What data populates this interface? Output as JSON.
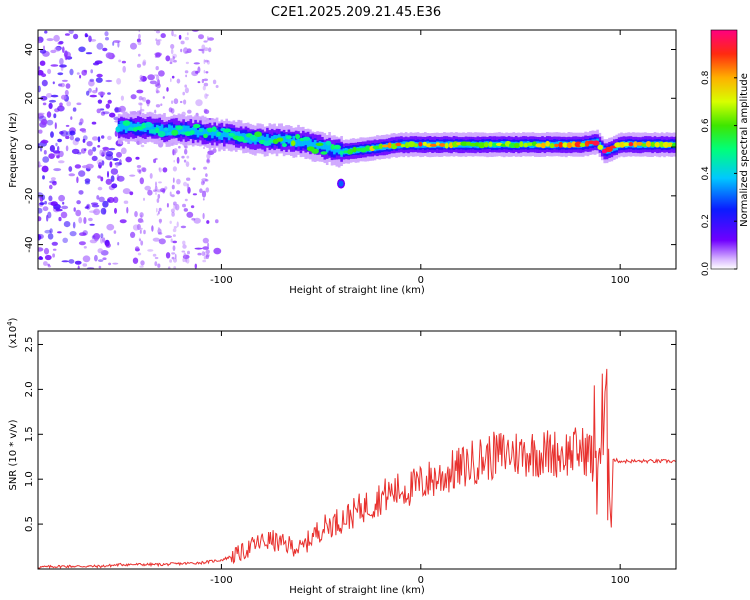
{
  "title": "C2E1.2025.209.21.45.E36",
  "chart_data": [
    {
      "type": "heatmap",
      "xlabel": "Height of straight line (km)",
      "ylabel": "Frequency (Hz)",
      "xlim": [
        -192,
        128
      ],
      "ylim": [
        -50,
        48
      ],
      "xticks": [
        -100,
        0,
        100
      ],
      "yticks": [
        -40,
        -20,
        0,
        20,
        40
      ],
      "colorbar": {
        "label": "Normalized spectral amplitude",
        "range": [
          0,
          1
        ],
        "ticks": [
          0.0,
          0.2,
          0.4,
          0.6,
          0.8
        ]
      },
      "ridge_frequency": [
        [
          -152,
          8
        ],
        [
          -140,
          8
        ],
        [
          -130,
          7
        ],
        [
          -120,
          7
        ],
        [
          -110,
          6
        ],
        [
          -100,
          5
        ],
        [
          -90,
          4
        ],
        [
          -80,
          3
        ],
        [
          -70,
          3
        ],
        [
          -60,
          2
        ],
        [
          -50,
          0
        ],
        [
          -40,
          -2
        ],
        [
          -30,
          -1
        ],
        [
          -20,
          0
        ],
        [
          -10,
          1
        ],
        [
          0,
          1
        ],
        [
          20,
          1
        ],
        [
          40,
          1
        ],
        [
          60,
          1
        ],
        [
          80,
          1
        ],
        [
          88,
          2
        ],
        [
          92,
          -2
        ],
        [
          100,
          1
        ],
        [
          128,
          1
        ]
      ],
      "ridge_peak_amplitude": [
        [
          -152,
          0.45
        ],
        [
          -120,
          0.5
        ],
        [
          -100,
          0.5
        ],
        [
          -80,
          0.55
        ],
        [
          -60,
          0.6
        ],
        [
          -40,
          0.55
        ],
        [
          -20,
          0.75
        ],
        [
          0,
          0.85
        ],
        [
          20,
          0.75
        ],
        [
          40,
          0.7
        ],
        [
          60,
          0.8
        ],
        [
          80,
          0.85
        ],
        [
          100,
          0.95
        ],
        [
          128,
          0.65
        ]
      ],
      "features": [
        {
          "x": -40,
          "y": -15,
          "amplitude": 0.3
        }
      ]
    },
    {
      "type": "line",
      "xlabel": "Height of straight line (km)",
      "ylabel": "SNR (10 * v/v)",
      "multiplier": "(x10",
      "multiplier_exp": "4",
      "multiplier_close": ")",
      "xlim": [
        -192,
        128
      ],
      "ylim": [
        0,
        2.65
      ],
      "xticks": [
        -100,
        0,
        100
      ],
      "yticks": [
        0.5,
        1.0,
        1.5,
        2.0,
        2.5
      ],
      "series": [
        {
          "color": "#e8312e",
          "x": [
            -192,
            -180,
            -160,
            -150,
            -140,
            -130,
            -120,
            -110,
            -100,
            -90,
            -85,
            -80,
            -75,
            -70,
            -65,
            -60,
            -55,
            -50,
            -45,
            -40,
            -35,
            -30,
            -25,
            -20,
            -15,
            -10,
            -5,
            0,
            5,
            10,
            15,
            20,
            25,
            30,
            35,
            40,
            45,
            50,
            55,
            60,
            65,
            70,
            75,
            80,
            85,
            88,
            90,
            92,
            94,
            96,
            100,
            110,
            120,
            128
          ],
          "y": [
            0.02,
            0.03,
            0.03,
            0.05,
            0.05,
            0.05,
            0.06,
            0.07,
            0.1,
            0.18,
            0.25,
            0.3,
            0.32,
            0.28,
            0.26,
            0.22,
            0.35,
            0.45,
            0.5,
            0.55,
            0.6,
            0.68,
            0.72,
            0.8,
            0.85,
            0.88,
            0.9,
            0.95,
            1.0,
            1.02,
            1.08,
            1.12,
            1.18,
            1.22,
            1.25,
            1.28,
            1.3,
            1.28,
            1.3,
            1.28,
            1.3,
            1.28,
            1.3,
            1.32,
            1.3,
            1.25,
            1.4,
            1.5,
            1.3,
            1.22,
            1.2,
            1.2,
            1.2,
            1.2
          ]
        }
      ]
    }
  ]
}
